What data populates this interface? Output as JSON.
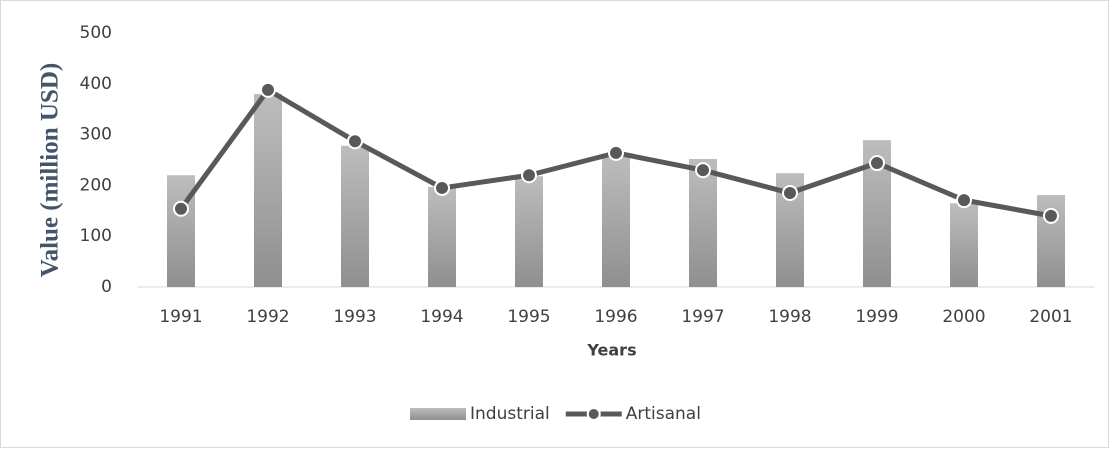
{
  "chart_data": {
    "type": "bar_line",
    "x_axis_label": "Years",
    "y_axis_label": "Value (million USD)",
    "categories": [
      "1991",
      "1992",
      "1993",
      "1994",
      "1995",
      "1996",
      "1997",
      "1998",
      "1999",
      "2000",
      "2001"
    ],
    "series": [
      {
        "name": "Industrial",
        "type": "bar",
        "color": "#a6a6a6",
        "values": [
          220,
          380,
          278,
          197,
          218,
          260,
          252,
          224,
          289,
          165,
          181
        ]
      },
      {
        "name": "Artisanal",
        "type": "line",
        "color": "#595959",
        "values": [
          154,
          388,
          287,
          195,
          220,
          264,
          230,
          185,
          244,
          171,
          140
        ]
      }
    ],
    "ylim": [
      0,
      500
    ],
    "yticks": [
      0,
      100,
      200,
      300,
      400,
      500
    ],
    "grid": false,
    "legend": "bottom"
  }
}
